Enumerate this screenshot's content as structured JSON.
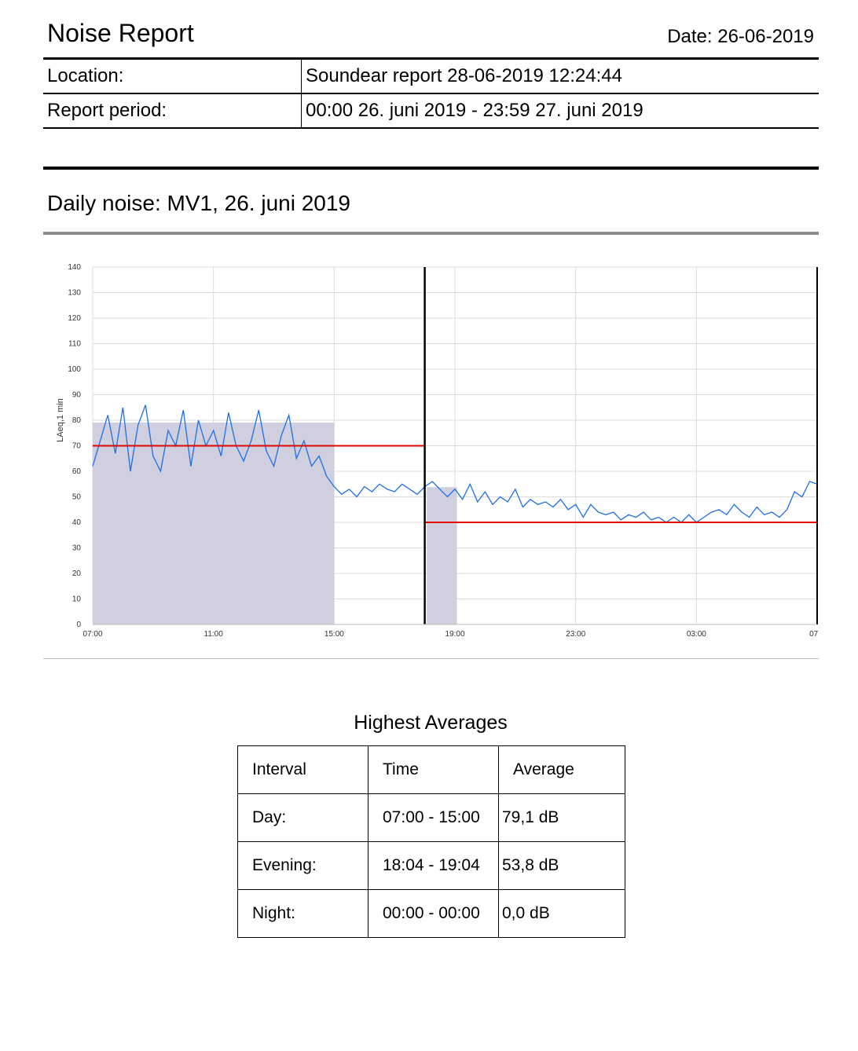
{
  "header": {
    "title": "Noise Report",
    "date": "Date: 26-06-2019"
  },
  "meta": [
    {
      "label": "Location:",
      "value": "Soundear report 28-06-2019 12:24:44"
    },
    {
      "label": "Report period:",
      "value": "00:00 26. juni 2019 - 23:59 27. juni 2019"
    }
  ],
  "section": {
    "title": "Daily noise: MV1, 26. juni 2019"
  },
  "chart_data": {
    "type": "line",
    "title": "",
    "xlabel": "",
    "ylabel": "LAeq,1 min",
    "ylim": [
      0,
      140
    ],
    "yticks": [
      "0",
      "10",
      "20",
      "30",
      "40",
      "50",
      "60",
      "70",
      "80",
      "90",
      "100",
      "110",
      "120",
      "130",
      "140"
    ],
    "xticks": [
      "07:00",
      "11:00",
      "15:00",
      "19:00",
      "23:00",
      "03:00",
      "07:"
    ],
    "xlim_hours": [
      7,
      31
    ],
    "grid": true,
    "colors": {
      "series": "#1f6fe0",
      "limit": "#e00000",
      "bar": "#cfcfe0",
      "marker": "#000000"
    },
    "bars": [
      {
        "label": "Day",
        "from": "07:00",
        "to": "15:00",
        "value": 79.1
      },
      {
        "label": "Evening",
        "from": "18:04",
        "to": "19:04",
        "value": 53.8
      }
    ],
    "limits": [
      {
        "from": "07:00",
        "to": "18:00",
        "value": 70
      },
      {
        "from": "18:00",
        "to": "07:00",
        "value": 40
      }
    ],
    "marker_time": "18:00",
    "series": [
      {
        "values": [
          [
            7.0,
            62
          ],
          [
            7.25,
            72
          ],
          [
            7.5,
            82
          ],
          [
            7.75,
            67
          ],
          [
            8.0,
            85
          ],
          [
            8.25,
            60
          ],
          [
            8.5,
            78
          ],
          [
            8.75,
            86
          ],
          [
            9.0,
            66
          ],
          [
            9.25,
            60
          ],
          [
            9.5,
            76
          ],
          [
            9.75,
            70
          ],
          [
            10.0,
            84
          ],
          [
            10.25,
            62
          ],
          [
            10.5,
            80
          ],
          [
            10.75,
            70
          ],
          [
            11.0,
            76
          ],
          [
            11.25,
            66
          ],
          [
            11.5,
            83
          ],
          [
            11.75,
            70
          ],
          [
            12.0,
            64
          ],
          [
            12.25,
            72
          ],
          [
            12.5,
            84
          ],
          [
            12.75,
            68
          ],
          [
            13.0,
            62
          ],
          [
            13.25,
            74
          ],
          [
            13.5,
            82
          ],
          [
            13.75,
            65
          ],
          [
            14.0,
            72
          ],
          [
            14.25,
            62
          ],
          [
            14.5,
            66
          ],
          [
            14.75,
            58
          ],
          [
            15.0,
            54
          ],
          [
            15.25,
            51
          ],
          [
            15.5,
            53
          ],
          [
            15.75,
            50
          ],
          [
            16.0,
            54
          ],
          [
            16.25,
            52
          ],
          [
            16.5,
            55
          ],
          [
            16.75,
            53
          ],
          [
            17.0,
            52
          ],
          [
            17.25,
            55
          ],
          [
            17.5,
            53
          ],
          [
            17.75,
            51
          ],
          [
            18.0,
            54
          ],
          [
            18.25,
            56
          ],
          [
            18.5,
            53
          ],
          [
            18.75,
            50
          ],
          [
            19.0,
            53
          ],
          [
            19.25,
            49
          ],
          [
            19.5,
            55
          ],
          [
            19.75,
            48
          ],
          [
            20.0,
            52
          ],
          [
            20.25,
            47
          ],
          [
            20.5,
            50
          ],
          [
            20.75,
            48
          ],
          [
            21.0,
            53
          ],
          [
            21.25,
            46
          ],
          [
            21.5,
            49
          ],
          [
            21.75,
            47
          ],
          [
            22.0,
            48
          ],
          [
            22.25,
            46
          ],
          [
            22.5,
            49
          ],
          [
            22.75,
            45
          ],
          [
            23.0,
            47
          ],
          [
            23.25,
            42
          ],
          [
            23.5,
            47
          ],
          [
            23.75,
            44
          ],
          [
            24.0,
            43
          ],
          [
            24.25,
            44
          ],
          [
            24.5,
            41
          ],
          [
            24.75,
            43
          ],
          [
            25.0,
            42
          ],
          [
            25.25,
            44
          ],
          [
            25.5,
            41
          ],
          [
            25.75,
            42
          ],
          [
            26.0,
            40
          ],
          [
            26.25,
            42
          ],
          [
            26.5,
            40
          ],
          [
            26.75,
            43
          ],
          [
            27.0,
            40
          ],
          [
            27.25,
            42
          ],
          [
            27.5,
            44
          ],
          [
            27.75,
            45
          ],
          [
            28.0,
            43
          ],
          [
            28.25,
            47
          ],
          [
            28.5,
            44
          ],
          [
            28.75,
            42
          ],
          [
            29.0,
            46
          ],
          [
            29.25,
            43
          ],
          [
            29.5,
            44
          ],
          [
            29.75,
            42
          ],
          [
            30.0,
            45
          ],
          [
            30.25,
            52
          ],
          [
            30.5,
            50
          ],
          [
            30.75,
            56
          ],
          [
            31.0,
            55
          ]
        ]
      }
    ]
  },
  "averages": {
    "title": "Highest Averages",
    "headers": [
      "Interval",
      "Time",
      "Average"
    ],
    "rows": [
      [
        "Day:",
        "07:00 - 15:00",
        "79,1 dB"
      ],
      [
        "Evening:",
        "18:04 - 19:04",
        "53,8 dB"
      ],
      [
        "Night:",
        "00:00 - 00:00",
        "0,0 dB"
      ]
    ]
  }
}
